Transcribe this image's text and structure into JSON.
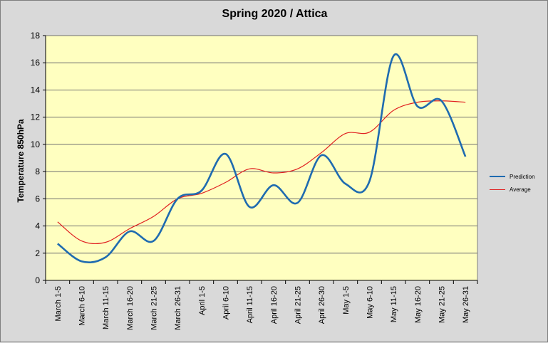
{
  "chart_data": {
    "type": "line",
    "title": "Spring 2020 / Attica",
    "xlabel": "",
    "ylabel": "Temperature 850hPa",
    "ylim": [
      0,
      18
    ],
    "yticks": [
      0,
      2,
      4,
      6,
      8,
      10,
      12,
      14,
      16,
      18
    ],
    "grid": true,
    "legend_position": "right",
    "categories": [
      "March 1-5",
      "March 6-10",
      "March 11-15",
      "March 16-20",
      "March 21-25",
      "March 26-31",
      "April 1-5",
      "April 6-10",
      "April 11-15",
      "April 16-20",
      "April 21-25",
      "April 26-30",
      "May 1-5",
      "May 6-10",
      "May 11-15",
      "May 16-20",
      "May 21-25",
      "May 26-31"
    ],
    "series": [
      {
        "name": "Prediction",
        "color": "#1f6bb0",
        "values": [
          2.7,
          1.4,
          1.7,
          3.6,
          2.9,
          6.0,
          6.6,
          9.3,
          5.4,
          7.0,
          5.7,
          9.2,
          7.1,
          7.3,
          16.5,
          12.8,
          13.2,
          9.1
        ]
      },
      {
        "name": "Average",
        "color": "#e02020",
        "values": [
          4.3,
          2.9,
          2.8,
          3.8,
          4.7,
          6.0,
          6.4,
          7.2,
          8.2,
          7.9,
          8.2,
          9.4,
          10.8,
          10.9,
          12.5,
          13.1,
          13.2,
          13.1
        ]
      }
    ]
  }
}
